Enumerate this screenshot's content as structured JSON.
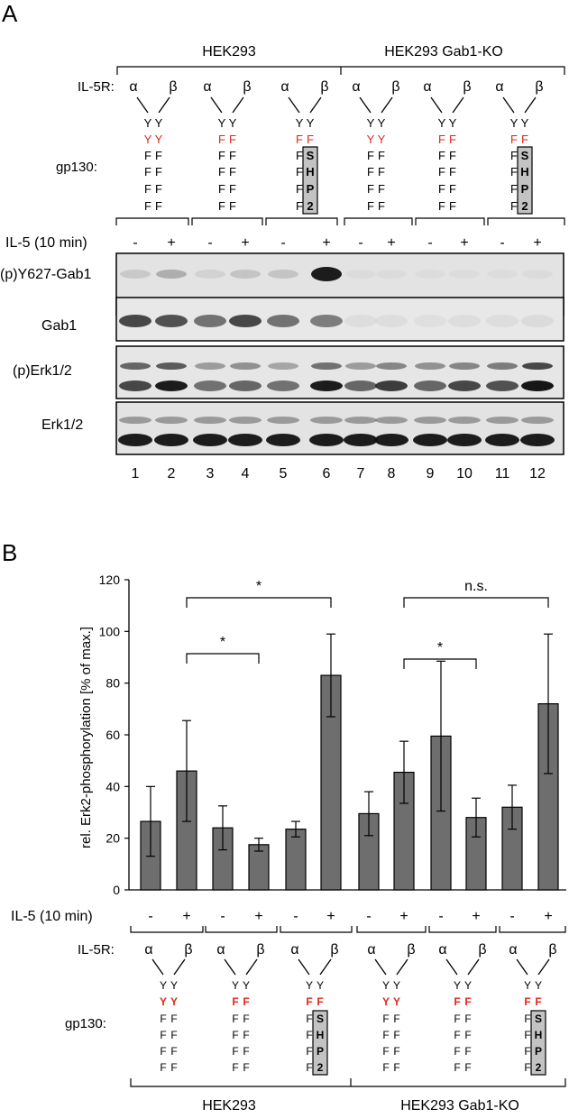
{
  "panel_a": {
    "letter": "A",
    "group_labels": [
      "HEK293",
      "HEK293 Gab1-KO"
    ],
    "il5r_label": "IL-5R:",
    "gp130_label": "gp130:",
    "alpha": "α",
    "beta": "β",
    "constructs": [
      {
        "red": [
          "Y",
          "Y"
        ],
        "shp2": false
      },
      {
        "red": [
          "F",
          "F"
        ],
        "shp2": false
      },
      {
        "red": [
          "F",
          "F"
        ],
        "shp2": true
      },
      {
        "red": [
          "Y",
          "Y"
        ],
        "shp2": false
      },
      {
        "red": [
          "F",
          "F"
        ],
        "shp2": false
      },
      {
        "red": [
          "F",
          "F"
        ],
        "shp2": true
      }
    ],
    "top_residue": "Y",
    "f_residue": "F",
    "shp2_letters": [
      "S",
      "H",
      "P",
      "2"
    ],
    "il5_label": "IL-5 (10 min)",
    "treatment": [
      "-",
      "+",
      "-",
      "+",
      "-",
      "+",
      "-",
      "+",
      "-",
      "+",
      "-",
      "+"
    ],
    "blot_labels": [
      "(p)Y627-Gab1",
      "Gab1",
      "(p)Erk1/2",
      "Erk1/2"
    ],
    "lane_numbers": [
      "1",
      "2",
      "3",
      "4",
      "5",
      "6",
      "7",
      "8",
      "9",
      "10",
      "11",
      "12"
    ]
  },
  "panel_b": {
    "letter": "B",
    "il5_label": "IL-5 (10 min)",
    "il5r_label": "IL-5R:",
    "gp130_label": "gp130:",
    "group_labels": [
      "HEK293",
      "HEK293 Gab1-KO"
    ],
    "significance": [
      "*",
      "*",
      "n.s.",
      "*"
    ]
  },
  "chart_data": {
    "type": "bar",
    "ylabel": "rel. Erk2-phosphorylation [% of max.]",
    "ylim": [
      0,
      120
    ],
    "yticks": [
      0,
      20,
      40,
      60,
      80,
      100,
      120
    ],
    "categories": [
      "-",
      "+",
      "-",
      "+",
      "-",
      "+",
      "-",
      "+",
      "-",
      "+",
      "-",
      "+"
    ],
    "values": [
      26.5,
      46,
      24,
      17.5,
      23.5,
      83,
      29.5,
      45.5,
      59.5,
      28,
      32,
      72
    ],
    "errors": [
      13.5,
      19.5,
      8.5,
      2.5,
      3,
      16,
      8.5,
      12,
      29,
      7.5,
      8.5,
      27
    ],
    "bar_color": "#6e6e6e",
    "red_color": "#e0261c",
    "shp2_box_color": "#c3c3c3"
  }
}
